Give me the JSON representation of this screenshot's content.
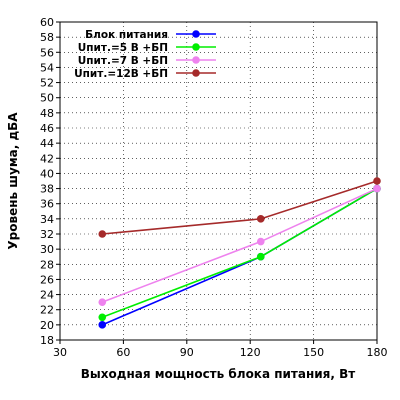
{
  "chart_data": {
    "type": "line",
    "xlabel": "Выходная мощность блока питания, Вт",
    "ylabel": "Уровень шума, дБА",
    "xlim": [
      30,
      180
    ],
    "ylim": [
      18,
      60
    ],
    "xticks": [
      30,
      60,
      90,
      120,
      150,
      180
    ],
    "yticks": [
      18,
      20,
      22,
      24,
      26,
      28,
      30,
      32,
      34,
      36,
      38,
      40,
      42,
      44,
      46,
      48,
      50,
      52,
      54,
      56,
      58,
      60
    ],
    "grid": true,
    "legend_position": "top-left",
    "series": [
      {
        "name": "Блок питания",
        "color": "#0000ff",
        "x": [
          50,
          125,
          180
        ],
        "y": [
          20,
          29,
          38
        ]
      },
      {
        "name": "Uпит.=5 В +БП",
        "color": "#00ee00",
        "x": [
          50,
          125,
          180
        ],
        "y": [
          21,
          29,
          38
        ]
      },
      {
        "name": "Uпит.=7 В +БП",
        "color": "#ee82ee",
        "x": [
          50,
          125,
          180
        ],
        "y": [
          23,
          31,
          38
        ]
      },
      {
        "name": "Uпит.=12В +БП",
        "color": "#a52a2a",
        "x": [
          50,
          125,
          180
        ],
        "y": [
          32,
          34,
          39
        ]
      }
    ]
  }
}
